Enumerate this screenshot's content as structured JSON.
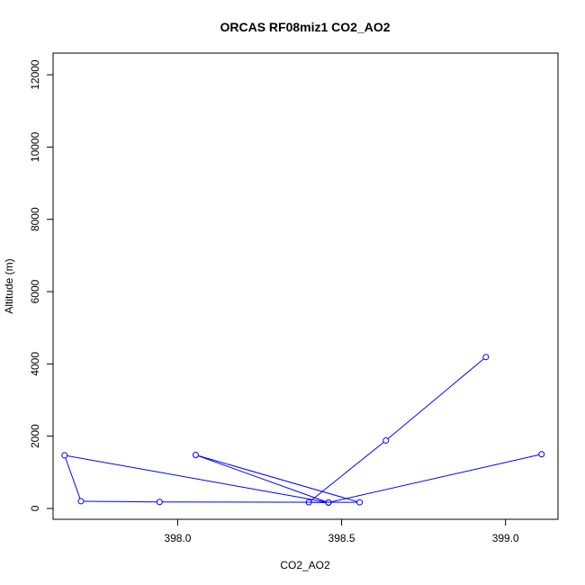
{
  "chart_data": {
    "type": "line",
    "title": "ORCAS RF08miz1 CO2_AO2",
    "xlabel": "CO2_AO2",
    "ylabel": "Altitude (m)",
    "xlim": [
      397.62,
      399.16
    ],
    "ylim": [
      -300,
      12600
    ],
    "x_ticks": [
      398.0,
      398.5,
      399.0
    ],
    "x_tick_labels": [
      "398.0",
      "398.5",
      "399.0"
    ],
    "y_ticks": [
      0,
      2000,
      4000,
      6000,
      8000,
      10000,
      12000
    ],
    "y_tick_labels": [
      "0",
      "2000",
      "4000",
      "6000",
      "8000",
      "10000",
      "12000"
    ],
    "grid": false,
    "markers": "open-circle",
    "series": [
      {
        "color": "#0000ff",
        "x": [
          398.94,
          398.635,
          398.4,
          398.46,
          398.055,
          398.555,
          397.945,
          397.705,
          397.655,
          398.46,
          399.11
        ],
        "y": [
          4190,
          1880,
          170,
          160,
          1480,
          170,
          180,
          200,
          1470,
          165,
          1500
        ]
      }
    ]
  }
}
